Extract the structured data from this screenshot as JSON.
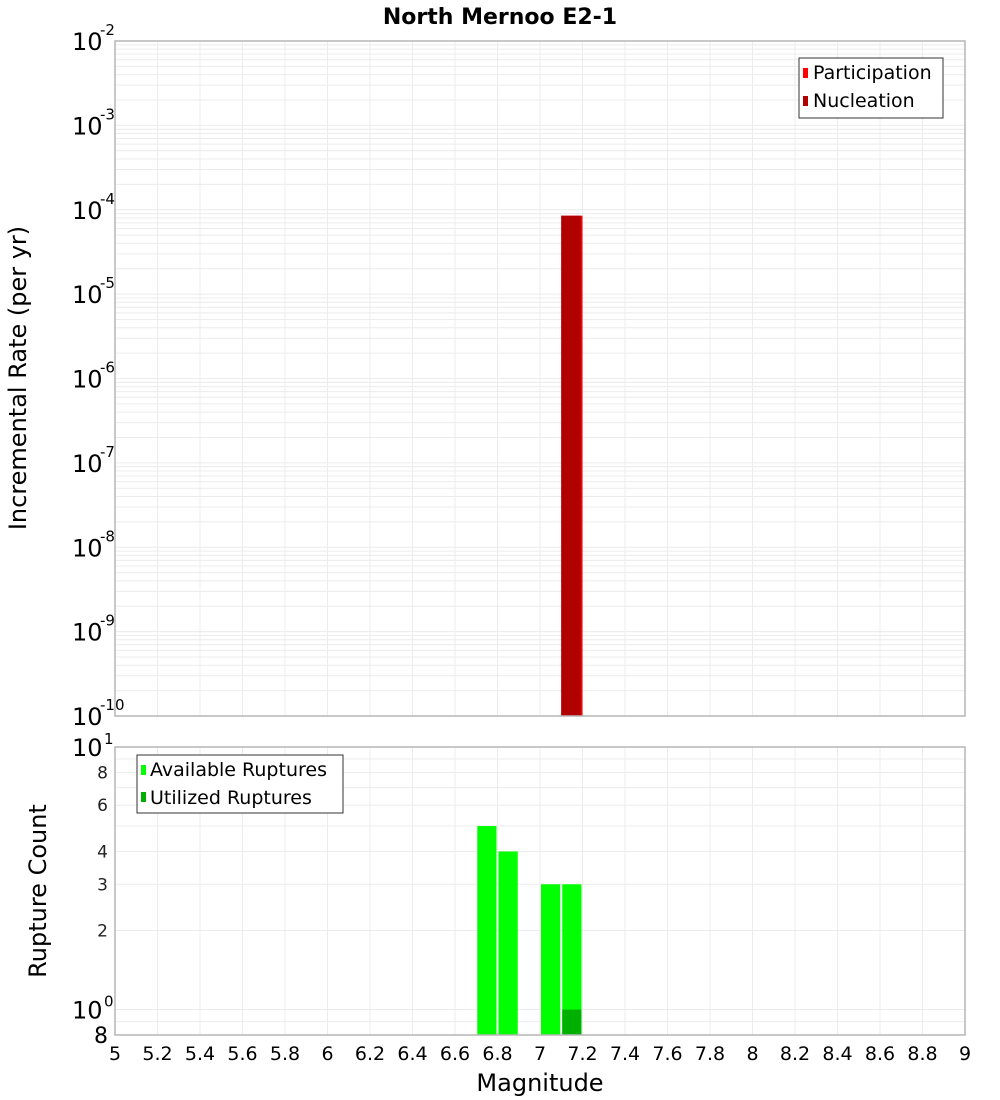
{
  "title": "North Mernoo E2-1",
  "colors": {
    "participation": "#ff0000",
    "nucleation": "#b00000",
    "available": "#00ff00",
    "utilized": "#00b000",
    "grid": "#ececec",
    "frame": "#b5b5b5"
  },
  "chart_data": [
    {
      "type": "bar",
      "title": "North Mernoo E2-1",
      "xlabel": "Magnitude",
      "ylabel": "Incremental Rate (per yr)",
      "yscale": "log",
      "ylim": [
        1e-10,
        0.01
      ],
      "xlim": [
        5,
        9
      ],
      "grid": true,
      "legend_position": "top-right",
      "legend": [
        "Participation",
        "Nucleation"
      ],
      "y_ticks": [
        "10^-2",
        "10^-3",
        "10^-4",
        "10^-5",
        "10^-6",
        "10^-7",
        "10^-8",
        "10^-9",
        "10^-10"
      ],
      "bin_width": 0.1,
      "series": [
        {
          "name": "Participation",
          "bins": [
            {
              "x0": 7.1,
              "x1": 7.2,
              "value": 8.5e-05
            }
          ]
        },
        {
          "name": "Nucleation",
          "bins": [
            {
              "x0": 7.1,
              "x1": 7.2,
              "value": 8.5e-05
            }
          ]
        }
      ]
    },
    {
      "type": "bar",
      "xlabel": "Magnitude",
      "ylabel": "Rupture Count",
      "yscale": "log",
      "ylim": [
        0.8,
        10
      ],
      "xlim": [
        5,
        9
      ],
      "grid": true,
      "legend_position": "top-left",
      "legend": [
        "Available Ruptures",
        "Utilized Ruptures"
      ],
      "y_ticks": [
        "10^1",
        "8",
        "6",
        "4",
        "3",
        "2",
        "10^0",
        "8"
      ],
      "x_ticks": [
        "5",
        "5.2",
        "5.4",
        "5.6",
        "5.8",
        "6",
        "6.2",
        "6.4",
        "6.6",
        "6.8",
        "7",
        "7.2",
        "7.4",
        "7.6",
        "7.8",
        "8",
        "8.2",
        "8.4",
        "8.6",
        "8.8",
        "9"
      ],
      "bin_width": 0.1,
      "series": [
        {
          "name": "Available Ruptures",
          "bins": [
            {
              "x0": 6.7,
              "x1": 6.8,
              "value": 5
            },
            {
              "x0": 6.8,
              "x1": 6.9,
              "value": 4
            },
            {
              "x0": 7.0,
              "x1": 7.1,
              "value": 3
            },
            {
              "x0": 7.1,
              "x1": 7.2,
              "value": 3
            }
          ]
        },
        {
          "name": "Utilized Ruptures",
          "bins": [
            {
              "x0": 7.1,
              "x1": 7.2,
              "value": 1
            }
          ]
        }
      ]
    }
  ],
  "legend_top": {
    "items": [
      "Participation",
      "Nucleation"
    ]
  },
  "legend_bottom": {
    "items": [
      "Available Ruptures",
      "Utilized Ruptures"
    ]
  },
  "axes": {
    "top_ylabel": "Incremental Rate (per yr)",
    "bottom_ylabel": "Rupture Count",
    "xlabel": "Magnitude"
  }
}
